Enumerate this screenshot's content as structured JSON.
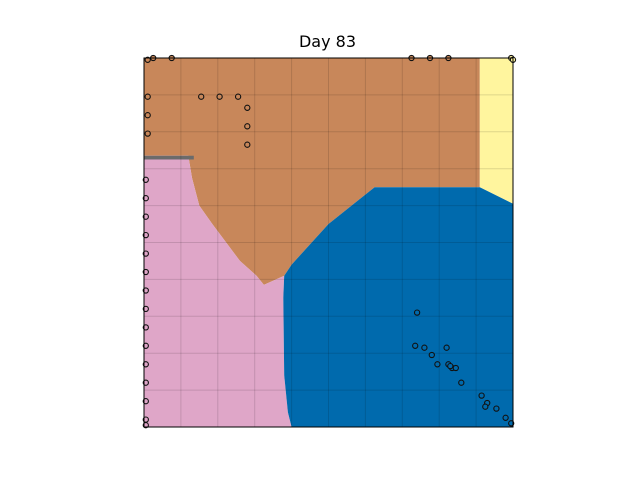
{
  "chart_data": {
    "type": "scatter",
    "title": "Day 83",
    "xlim": [
      0,
      20
    ],
    "ylim": [
      0,
      20
    ],
    "grid": true,
    "region_colors": {
      "brown": "#c8875a",
      "yellow": "#fff59e",
      "pink": "#dfa6c8",
      "blue": "#006aad",
      "gray": "#6b6b6b"
    },
    "regions": [
      {
        "name": "brown",
        "polygon": [
          [
            0,
            20
          ],
          [
            18.2,
            20
          ],
          [
            18.2,
            13
          ],
          [
            12.5,
            13
          ],
          [
            11.5,
            12.2
          ],
          [
            10,
            11
          ],
          [
            8,
            8.8
          ],
          [
            7.6,
            8.2
          ],
          [
            6.5,
            7.7
          ],
          [
            6.1,
            8.2
          ],
          [
            5.2,
            9
          ],
          [
            3.7,
            11
          ],
          [
            3,
            12
          ],
          [
            2.6,
            13.5
          ],
          [
            2.4,
            14.7
          ],
          [
            0,
            14.7
          ]
        ]
      },
      {
        "name": "yellow",
        "polygon": [
          [
            18.2,
            20
          ],
          [
            20,
            20
          ],
          [
            20,
            12.1
          ],
          [
            19.2,
            12.5
          ],
          [
            18.2,
            13
          ]
        ]
      },
      {
        "name": "pink",
        "polygon": [
          [
            0,
            0
          ],
          [
            8,
            0
          ],
          [
            7.8,
            0.8
          ],
          [
            7.6,
            2.8
          ],
          [
            7.55,
            7
          ],
          [
            7.6,
            8.2
          ],
          [
            6.5,
            7.7
          ],
          [
            6.1,
            8.2
          ],
          [
            5.2,
            9
          ],
          [
            3.7,
            11
          ],
          [
            3,
            12
          ],
          [
            2.6,
            13.5
          ],
          [
            2.4,
            14.7
          ],
          [
            0,
            14.7
          ]
        ]
      },
      {
        "name": "blue",
        "polygon": [
          [
            8,
            0
          ],
          [
            20,
            0
          ],
          [
            20,
            12.1
          ],
          [
            19.2,
            12.5
          ],
          [
            18.2,
            13
          ],
          [
            12.5,
            13
          ],
          [
            11.5,
            12.2
          ],
          [
            10,
            11
          ],
          [
            8,
            8.8
          ],
          [
            7.6,
            8.2
          ],
          [
            7.55,
            7
          ],
          [
            7.6,
            2.8
          ],
          [
            7.8,
            0.8
          ]
        ]
      },
      {
        "name": "gray",
        "polygon": [
          [
            0,
            14.7
          ],
          [
            2.7,
            14.7
          ],
          [
            2.7,
            14.5
          ],
          [
            0,
            14.5
          ]
        ]
      }
    ],
    "series": [
      {
        "color": "#c8875a",
        "x": [
          0.2,
          0.5,
          1.5,
          14.5,
          15.5,
          16.5,
          0.2,
          3.1,
          4.1,
          5.1,
          5.6,
          0.2,
          5.6,
          0.2,
          5.6
        ],
        "y": [
          19.9,
          20,
          20,
          20,
          20,
          20,
          17.9,
          17.9,
          17.9,
          17.9,
          17.3,
          16.9,
          16.3,
          15.9,
          15.3
        ]
      },
      {
        "color": "#fff59e",
        "x": [
          19.9,
          20
        ],
        "y": [
          20,
          19.9
        ]
      },
      {
        "color": "#dfa6c8",
        "x": [
          0.1,
          0.1,
          0.1,
          0.1,
          0.1,
          0.1,
          0.1,
          0.1,
          0.1,
          0.1,
          0.1,
          0.1,
          0.1,
          0.1,
          0.1
        ],
        "y": [
          13.4,
          12.4,
          11.4,
          10.4,
          9.4,
          8.4,
          7.4,
          6.4,
          5.4,
          4.4,
          3.4,
          2.4,
          1.4,
          0.4,
          0.1
        ]
      },
      {
        "color": "#006aad",
        "x": [
          14.8,
          14.7,
          15.2,
          15.6,
          15.9,
          16.4,
          16.5,
          16.7,
          16.6,
          16.9,
          17.2,
          18.3,
          18.6,
          18.5,
          19.1,
          19.6,
          19.9
        ],
        "y": [
          6.2,
          4.4,
          4.3,
          3.9,
          3.4,
          4.3,
          3.4,
          3.2,
          3.3,
          3.2,
          2.4,
          1.7,
          1.3,
          1.1,
          1.0,
          0.5,
          0.2
        ]
      }
    ]
  }
}
